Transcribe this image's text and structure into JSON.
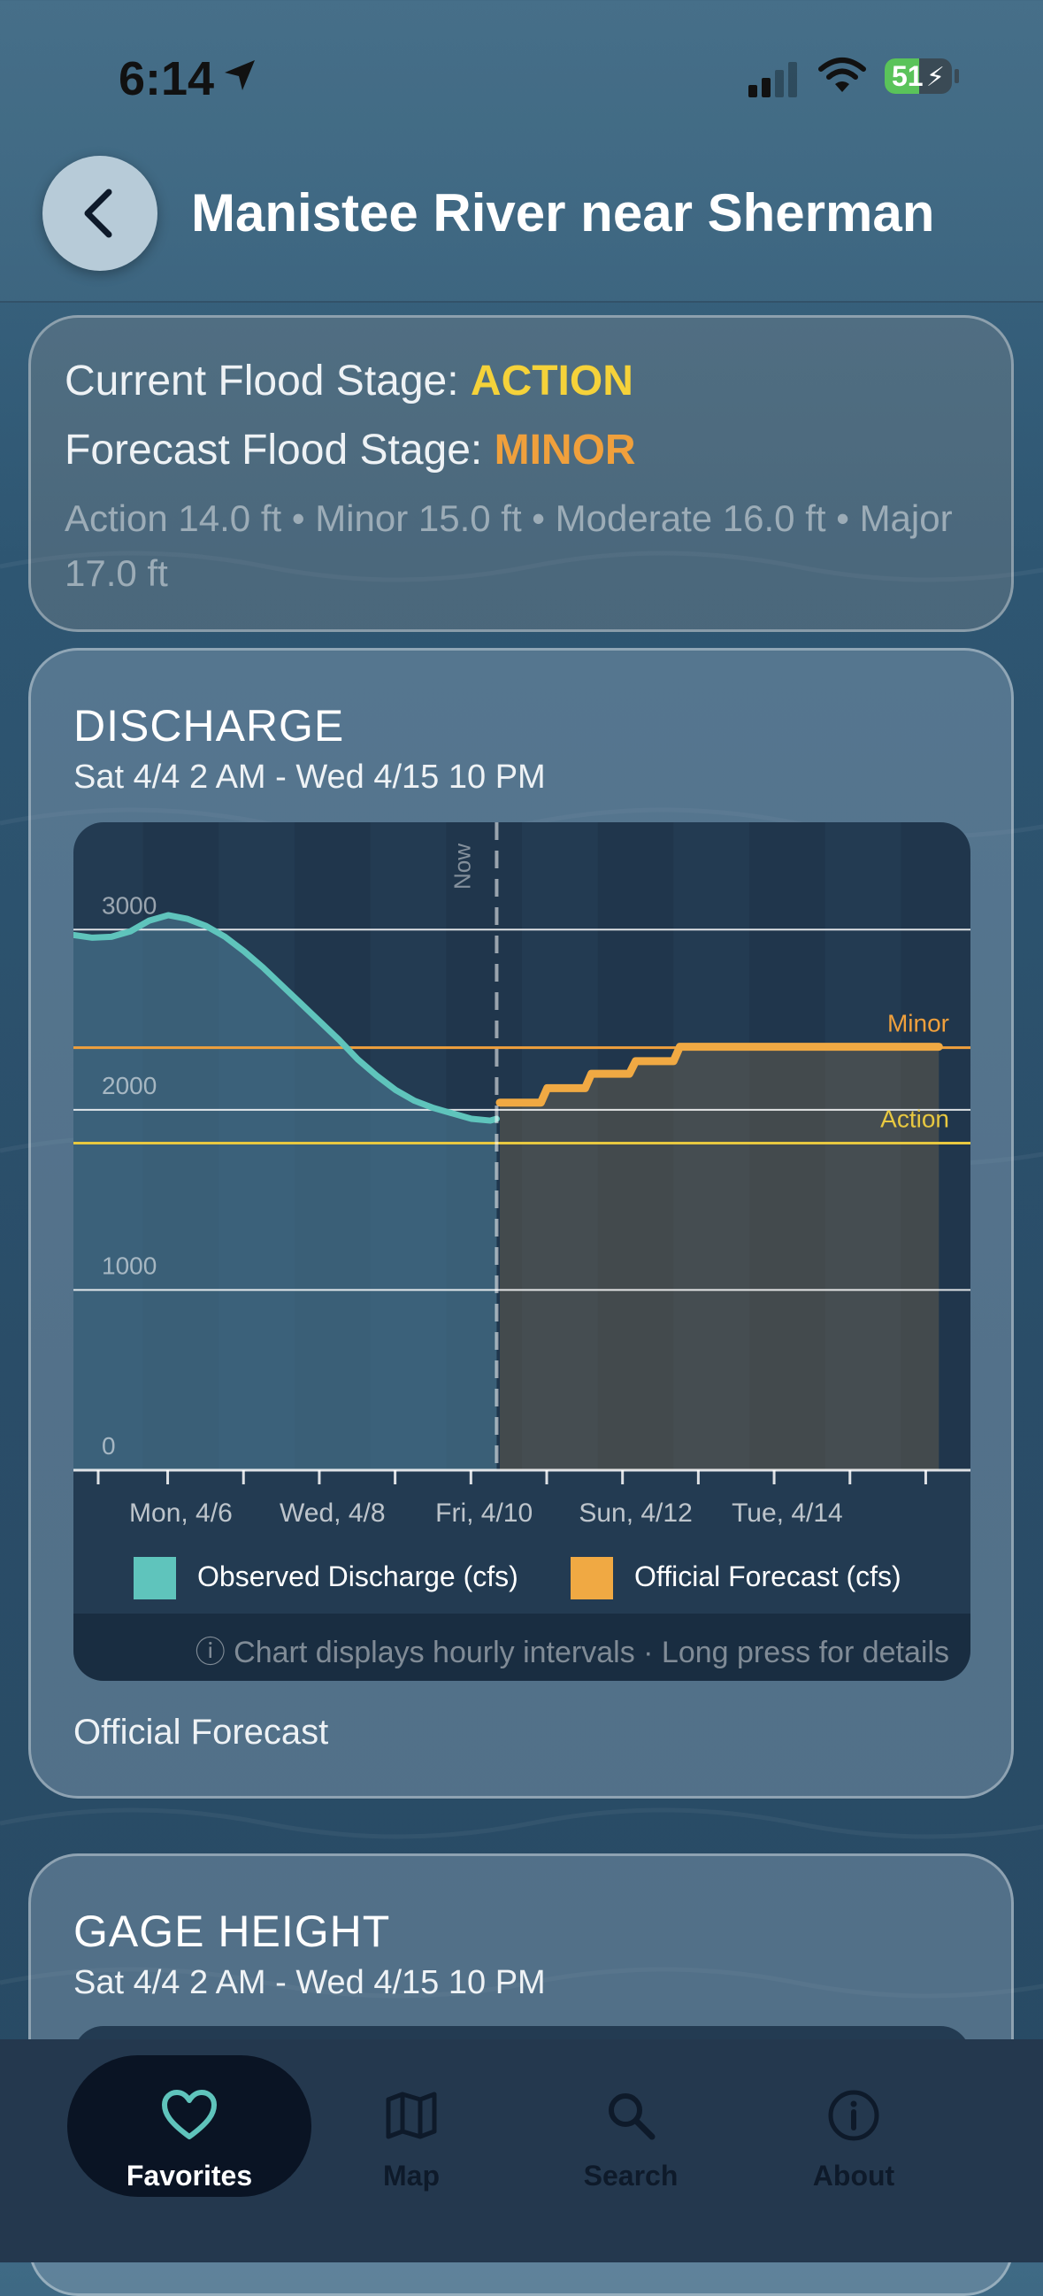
{
  "status_bar": {
    "time": "6:14",
    "battery_level": 51,
    "battery_text": "51"
  },
  "header": {
    "title": "Manistee River near Sherman"
  },
  "flood_stage": {
    "current_label": "Current Flood Stage: ",
    "current_value": "ACTION",
    "forecast_label": "Forecast Flood Stage: ",
    "forecast_value": "MINOR",
    "thresholds": "Action 14.0 ft • Minor 15.0 ft • Moderate 16.0 ft • Major 17.0 ft"
  },
  "discharge": {
    "title": "DISCHARGE",
    "range": "Sat 4/4 2 AM - Wed 4/15 10 PM",
    "footer": "Official Forecast",
    "info_text": "ⓘ Chart displays hourly intervals · Long press for details"
  },
  "gage_height": {
    "title": "GAGE HEIGHT",
    "range": "Sat 4/4 2 AM - Wed 4/15 10 PM"
  },
  "chart_data": {
    "type": "area",
    "xlabel": "",
    "ylabel": "",
    "x_range_hours": [
      0,
      284
    ],
    "ylim": [
      0,
      3350
    ],
    "y_ticks": [
      0,
      1000,
      2000,
      3000
    ],
    "x_ticks_hours": [
      0,
      22,
      46,
      70,
      94,
      118,
      142,
      166,
      190,
      214,
      238,
      262,
      286
    ],
    "x_tick_labels": [
      {
        "hour": 34,
        "label": "Mon, 4/6"
      },
      {
        "hour": 82,
        "label": "Wed, 4/8"
      },
      {
        "hour": 130,
        "label": "Fri, 4/10"
      },
      {
        "hour": 178,
        "label": "Sun, 4/12"
      },
      {
        "hour": 226,
        "label": "Tue, 4/14"
      }
    ],
    "now_hour": 134,
    "now_label": "Now",
    "thresholds": [
      {
        "name": "Minor",
        "value": 2345,
        "color": "#f0a03c"
      },
      {
        "name": "Action",
        "value": 1815,
        "color": "#e8c840"
      }
    ],
    "series": [
      {
        "name": "Observed Discharge (cfs)",
        "color": "#5fc4bc",
        "x": [
          0,
          6,
          12,
          18,
          24,
          30,
          36,
          42,
          48,
          54,
          60,
          66,
          72,
          78,
          84,
          90,
          96,
          102,
          108,
          114,
          120,
          126,
          132,
          134
        ],
        "values": [
          2970,
          2955,
          2960,
          2990,
          3050,
          3080,
          3060,
          3020,
          2960,
          2880,
          2790,
          2690,
          2590,
          2490,
          2390,
          2280,
          2190,
          2110,
          2050,
          2010,
          1980,
          1950,
          1940,
          1950
        ]
      },
      {
        "name": "Official Forecast (cfs)",
        "color": "#f0a943",
        "x": [
          135,
          148,
          150,
          162,
          164,
          176,
          178,
          190,
          192,
          202,
          204,
          274
        ],
        "values": [
          2040,
          2040,
          2120,
          2120,
          2200,
          2200,
          2270,
          2270,
          2350,
          2350,
          2350,
          2350
        ]
      }
    ]
  },
  "tabs": [
    {
      "label": "Favorites",
      "icon": "heart-icon",
      "active": true
    },
    {
      "label": "Map",
      "icon": "map-icon",
      "active": false
    },
    {
      "label": "Search",
      "icon": "search-icon",
      "active": false
    },
    {
      "label": "About",
      "icon": "info-icon",
      "active": false
    }
  ]
}
